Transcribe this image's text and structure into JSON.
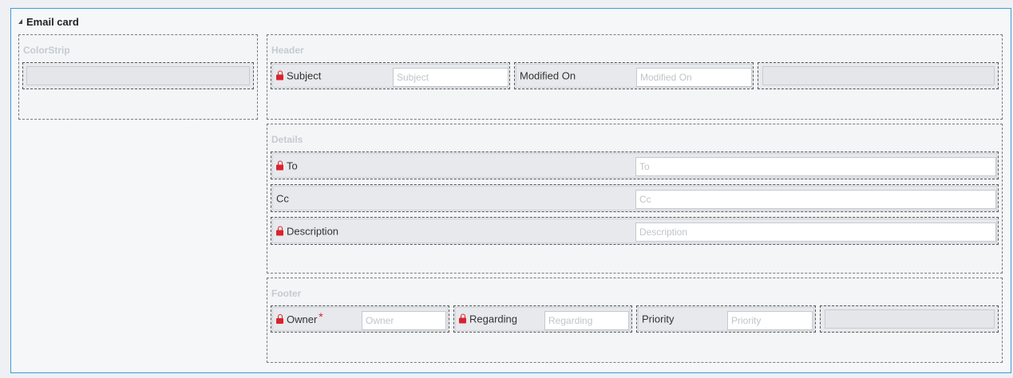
{
  "card": {
    "title": "Email card"
  },
  "sections": {
    "colorstrip": {
      "label": "ColorStrip"
    },
    "header": {
      "label": "Header",
      "subject": {
        "label": "Subject",
        "placeholder": "Subject"
      },
      "modified_on": {
        "label": "Modified On",
        "placeholder": "Modified On"
      }
    },
    "details": {
      "label": "Details",
      "to": {
        "label": "To",
        "placeholder": "To"
      },
      "cc": {
        "label": "Cc",
        "placeholder": "Cc"
      },
      "description": {
        "label": "Description",
        "placeholder": "Description"
      }
    },
    "footer": {
      "label": "Footer",
      "owner": {
        "label": "Owner",
        "required_mark": "*",
        "placeholder": "Owner"
      },
      "regarding": {
        "label": "Regarding",
        "placeholder": "Regarding"
      },
      "priority": {
        "label": "Priority",
        "placeholder": "Priority"
      }
    }
  },
  "icons": {
    "lock": "lock-icon",
    "collapse": "collapse-triangle-icon"
  },
  "colors": {
    "lock": "#d9232d",
    "card_border": "#3f9bd6",
    "section_label": "#c6cbd1"
  }
}
